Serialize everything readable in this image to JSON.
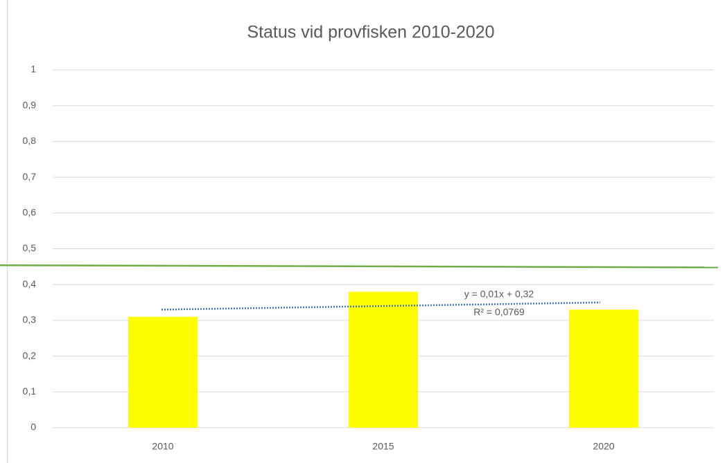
{
  "chart_data": {
    "type": "bar",
    "title": "Status vid provfisken 2010-2020",
    "categories": [
      "2010",
      "2015",
      "2020"
    ],
    "values": [
      0.31,
      0.38,
      0.33
    ],
    "color": "#ffff00",
    "ylim": [
      0,
      1
    ],
    "yticks": [
      0,
      {
        "value": 0.1,
        "label": "0,1"
      },
      {
        "value": 0.2,
        "label": "0,2"
      },
      {
        "value": 0.3,
        "label": "0,3"
      },
      {
        "value": 0.4,
        "label": "0,4"
      },
      {
        "value": 0.5,
        "label": "0,5"
      },
      {
        "value": 0.6,
        "label": "0,6"
      },
      {
        "value": 0.7,
        "label": "0,7"
      },
      {
        "value": 0.8,
        "label": "0,8"
      },
      {
        "value": 0.9,
        "label": "0,9"
      },
      1
    ],
    "grid": true,
    "trendline": {
      "color": "#4472c4",
      "values": [
        0.33,
        0.35
      ],
      "equation": "y = 0,01x + 0,32",
      "r_squared": "R² = 0,0769"
    },
    "reference_line": {
      "color": "#70ad47",
      "values": [
        0.454,
        0.448
      ]
    }
  }
}
